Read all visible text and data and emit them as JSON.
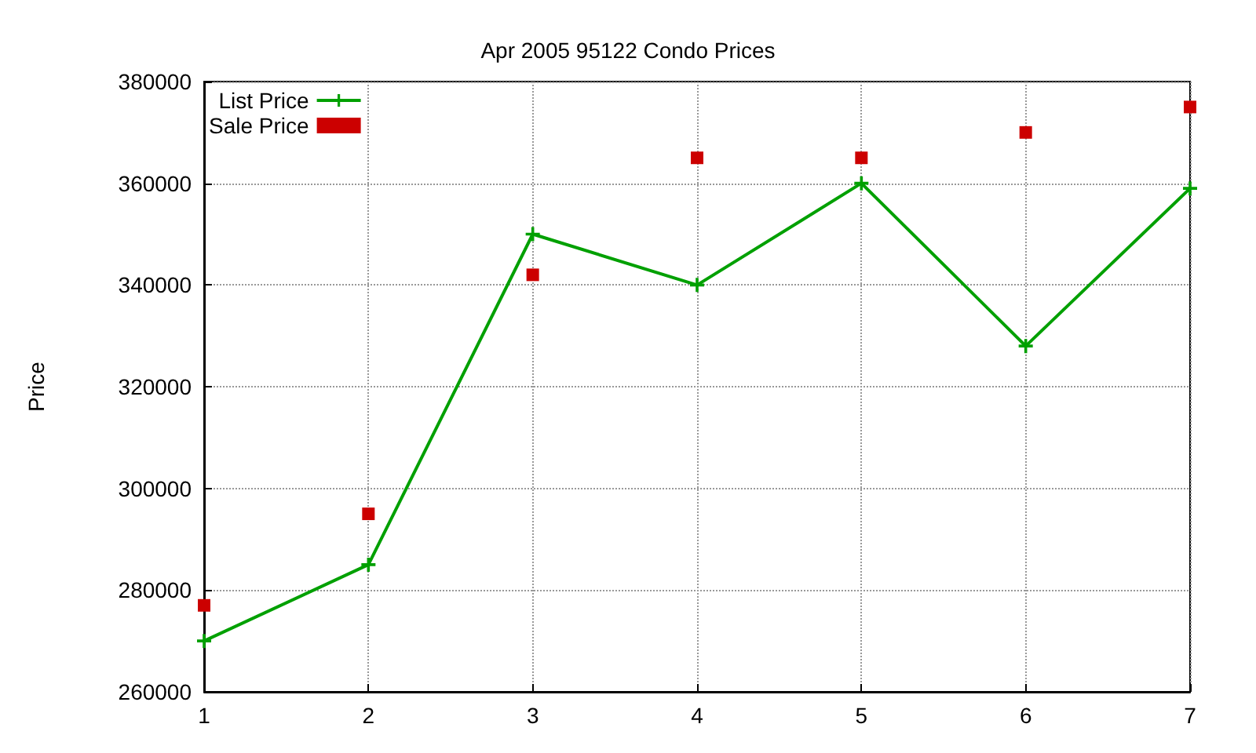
{
  "chart_data": {
    "type": "line",
    "title": "Apr 2005 95122 Condo Prices",
    "ylabel": "Price",
    "x": [
      1,
      2,
      3,
      4,
      5,
      6,
      7
    ],
    "series": [
      {
        "name": "List Price",
        "color": "#00a000",
        "marker": "cross",
        "values": [
          270000,
          285000,
          350000,
          340000,
          360000,
          328000,
          359000
        ]
      },
      {
        "name": "Sale Price",
        "type": "scatter",
        "color": "#cc0000",
        "marker": "square",
        "values": [
          277000,
          295000,
          342000,
          365000,
          365000,
          370000,
          375000
        ]
      }
    ],
    "xlim": [
      1,
      7
    ],
    "xticks": [
      1,
      2,
      3,
      4,
      5,
      6,
      7
    ],
    "ylim": [
      260000,
      380000
    ],
    "yticks": [
      260000,
      280000,
      300000,
      320000,
      340000,
      360000,
      380000
    ],
    "grid": true,
    "legend": "top left",
    "line_style": "solid"
  }
}
